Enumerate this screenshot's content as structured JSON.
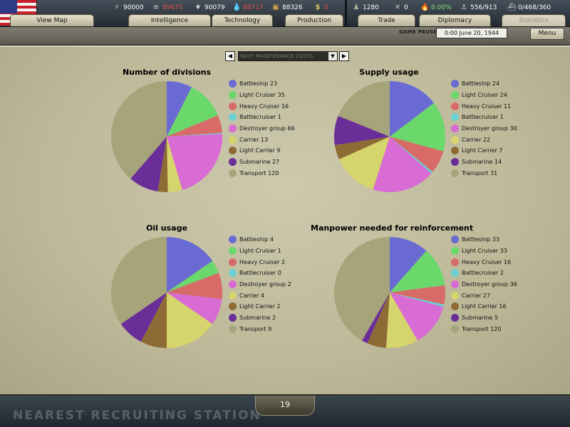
{
  "topbar": {
    "resources": [
      {
        "icon": "energy-icon",
        "value": "90000",
        "color": "#ffffff"
      },
      {
        "icon": "metal-icon",
        "value": "89675",
        "color": "#e05050"
      },
      {
        "icon": "rare-materials-icon",
        "value": "90079",
        "color": "#ffffff"
      },
      {
        "icon": "oil-icon",
        "value": "88717",
        "color": "#e05050"
      },
      {
        "icon": "supplies-icon",
        "value": "88326",
        "color": "#ffffff"
      },
      {
        "icon": "money-icon",
        "value": "0",
        "color": "#e05050"
      }
    ],
    "stats": [
      {
        "icon": "manpower-icon",
        "value": "1280",
        "color": "#ffffff"
      },
      {
        "icon": "crossed-swords-icon",
        "value": "0",
        "color": "#ffffff"
      },
      {
        "icon": "dissent-icon",
        "value": "0.00%",
        "color": "#8be07a"
      },
      {
        "icon": "transports-icon",
        "value": "556/913",
        "color": "#ffffff"
      },
      {
        "icon": "convoys-icon",
        "value": "0/468/360",
        "color": "#ffffff"
      }
    ],
    "tabs_left": [
      "View Map",
      "Intelligence",
      "Technology",
      "Production"
    ],
    "tabs_right": [
      "Trade",
      "Diplomacy",
      "Statistics"
    ],
    "active_tab": "Statistics"
  },
  "subbar": {
    "status": "GAME PAUSED",
    "date": "0:00 June 20, 1944",
    "menu_label": "Menu"
  },
  "selector": {
    "value": "NAVY MAINTENANCE COSTS",
    "prev": "◀",
    "next": "▶",
    "dropdown": "▼"
  },
  "colors": {
    "Battleship": "#6a6bd2",
    "Light Cruiser": "#6bd86c",
    "Heavy Cruiser": "#d86a68",
    "Battlecruiser": "#6ad2d2",
    "Destroyer group": "#d86bd4",
    "Carrier": "#d6d46c",
    "Light Carrier": "#8e6b34",
    "Submarine": "#6a2e98",
    "Transport": "#a6a47a"
  },
  "charts": [
    {
      "title": "Number of divisions",
      "type": "pie",
      "items": [
        {
          "label": "Battleship 23",
          "category": "Battleship",
          "value": 23
        },
        {
          "label": "Light Cruiser 35",
          "category": "Light Cruiser",
          "value": 35
        },
        {
          "label": "Heavy Cruiser 16",
          "category": "Heavy Cruiser",
          "value": 16
        },
        {
          "label": "Battlecruiser 1",
          "category": "Battlecruiser",
          "value": 1
        },
        {
          "label": "Destroyer group 66",
          "category": "Destroyer group",
          "value": 66
        },
        {
          "label": "Carrier 13",
          "category": "Carrier",
          "value": 13
        },
        {
          "label": "Light Carrier 9",
          "category": "Light Carrier",
          "value": 9
        },
        {
          "label": "Submarine 27",
          "category": "Submarine",
          "value": 27
        },
        {
          "label": "Transport 120",
          "category": "Transport",
          "value": 120
        }
      ]
    },
    {
      "title": "Supply usage",
      "type": "pie",
      "items": [
        {
          "label": "Battleship 24",
          "category": "Battleship",
          "value": 24
        },
        {
          "label": "Light Cruiser 24",
          "category": "Light Cruiser",
          "value": 24
        },
        {
          "label": "Heavy Cruiser 11",
          "category": "Heavy Cruiser",
          "value": 11
        },
        {
          "label": "Battlecruiser 1",
          "category": "Battlecruiser",
          "value": 1
        },
        {
          "label": "Destroyer group 30",
          "category": "Destroyer group",
          "value": 30
        },
        {
          "label": "Carrier 22",
          "category": "Carrier",
          "value": 22
        },
        {
          "label": "Light Carrier 7",
          "category": "Light Carrier",
          "value": 7
        },
        {
          "label": "Submarine 14",
          "category": "Submarine",
          "value": 14
        },
        {
          "label": "Transport 31",
          "category": "Transport",
          "value": 31
        }
      ]
    },
    {
      "title": "Oil usage",
      "type": "pie",
      "items": [
        {
          "label": "Battleship 4",
          "category": "Battleship",
          "value": 4
        },
        {
          "label": "Light Cruiser 1",
          "category": "Light Cruiser",
          "value": 1
        },
        {
          "label": "Heavy Cruiser 2",
          "category": "Heavy Cruiser",
          "value": 2
        },
        {
          "label": "Battlecruiser 0",
          "category": "Battlecruiser",
          "value": 0
        },
        {
          "label": "Destroyer group 2",
          "category": "Destroyer group",
          "value": 2
        },
        {
          "label": "Carrier 4",
          "category": "Carrier",
          "value": 4
        },
        {
          "label": "Light Carrier 2",
          "category": "Light Carrier",
          "value": 2
        },
        {
          "label": "Submarine 2",
          "category": "Submarine",
          "value": 2
        },
        {
          "label": "Transport 9",
          "category": "Transport",
          "value": 9
        }
      ]
    },
    {
      "title": "Manpower needed for reinforcement",
      "type": "pie",
      "items": [
        {
          "label": "Battleship 33",
          "category": "Battleship",
          "value": 33
        },
        {
          "label": "Light Cruiser 33",
          "category": "Light Cruiser",
          "value": 33
        },
        {
          "label": "Heavy Cruiser 16",
          "category": "Heavy Cruiser",
          "value": 16
        },
        {
          "label": "Battlecruiser 2",
          "category": "Battlecruiser",
          "value": 2
        },
        {
          "label": "Destroyer group 36",
          "category": "Destroyer group",
          "value": 36
        },
        {
          "label": "Carrier 27",
          "category": "Carrier",
          "value": 27
        },
        {
          "label": "Light Carrier 16",
          "category": "Light Carrier",
          "value": 16
        },
        {
          "label": "Submarine 5",
          "category": "Submarine",
          "value": 5
        },
        {
          "label": "Transport 120",
          "category": "Transport",
          "value": 120
        }
      ]
    }
  ],
  "chart_data": [
    {
      "type": "pie",
      "title": "Number of divisions",
      "categories": [
        "Battleship",
        "Light Cruiser",
        "Heavy Cruiser",
        "Battlecruiser",
        "Destroyer group",
        "Carrier",
        "Light Carrier",
        "Submarine",
        "Transport"
      ],
      "values": [
        23,
        35,
        16,
        1,
        66,
        13,
        9,
        27,
        120
      ]
    },
    {
      "type": "pie",
      "title": "Supply usage",
      "categories": [
        "Battleship",
        "Light Cruiser",
        "Heavy Cruiser",
        "Battlecruiser",
        "Destroyer group",
        "Carrier",
        "Light Carrier",
        "Submarine",
        "Transport"
      ],
      "values": [
        24,
        24,
        11,
        1,
        30,
        22,
        7,
        14,
        31
      ]
    },
    {
      "type": "pie",
      "title": "Oil usage",
      "categories": [
        "Battleship",
        "Light Cruiser",
        "Heavy Cruiser",
        "Battlecruiser",
        "Destroyer group",
        "Carrier",
        "Light Carrier",
        "Submarine",
        "Transport"
      ],
      "values": [
        4,
        1,
        2,
        0,
        2,
        4,
        2,
        2,
        9
      ]
    },
    {
      "type": "pie",
      "title": "Manpower needed for reinforcement",
      "categories": [
        "Battleship",
        "Light Cruiser",
        "Heavy Cruiser",
        "Battlecruiser",
        "Destroyer group",
        "Carrier",
        "Light Carrier",
        "Submarine",
        "Transport"
      ],
      "values": [
        33,
        33,
        16,
        2,
        36,
        27,
        16,
        5,
        120
      ]
    }
  ],
  "bottom": {
    "banner": "NEAREST RECRUITING STATION",
    "page": "19"
  }
}
